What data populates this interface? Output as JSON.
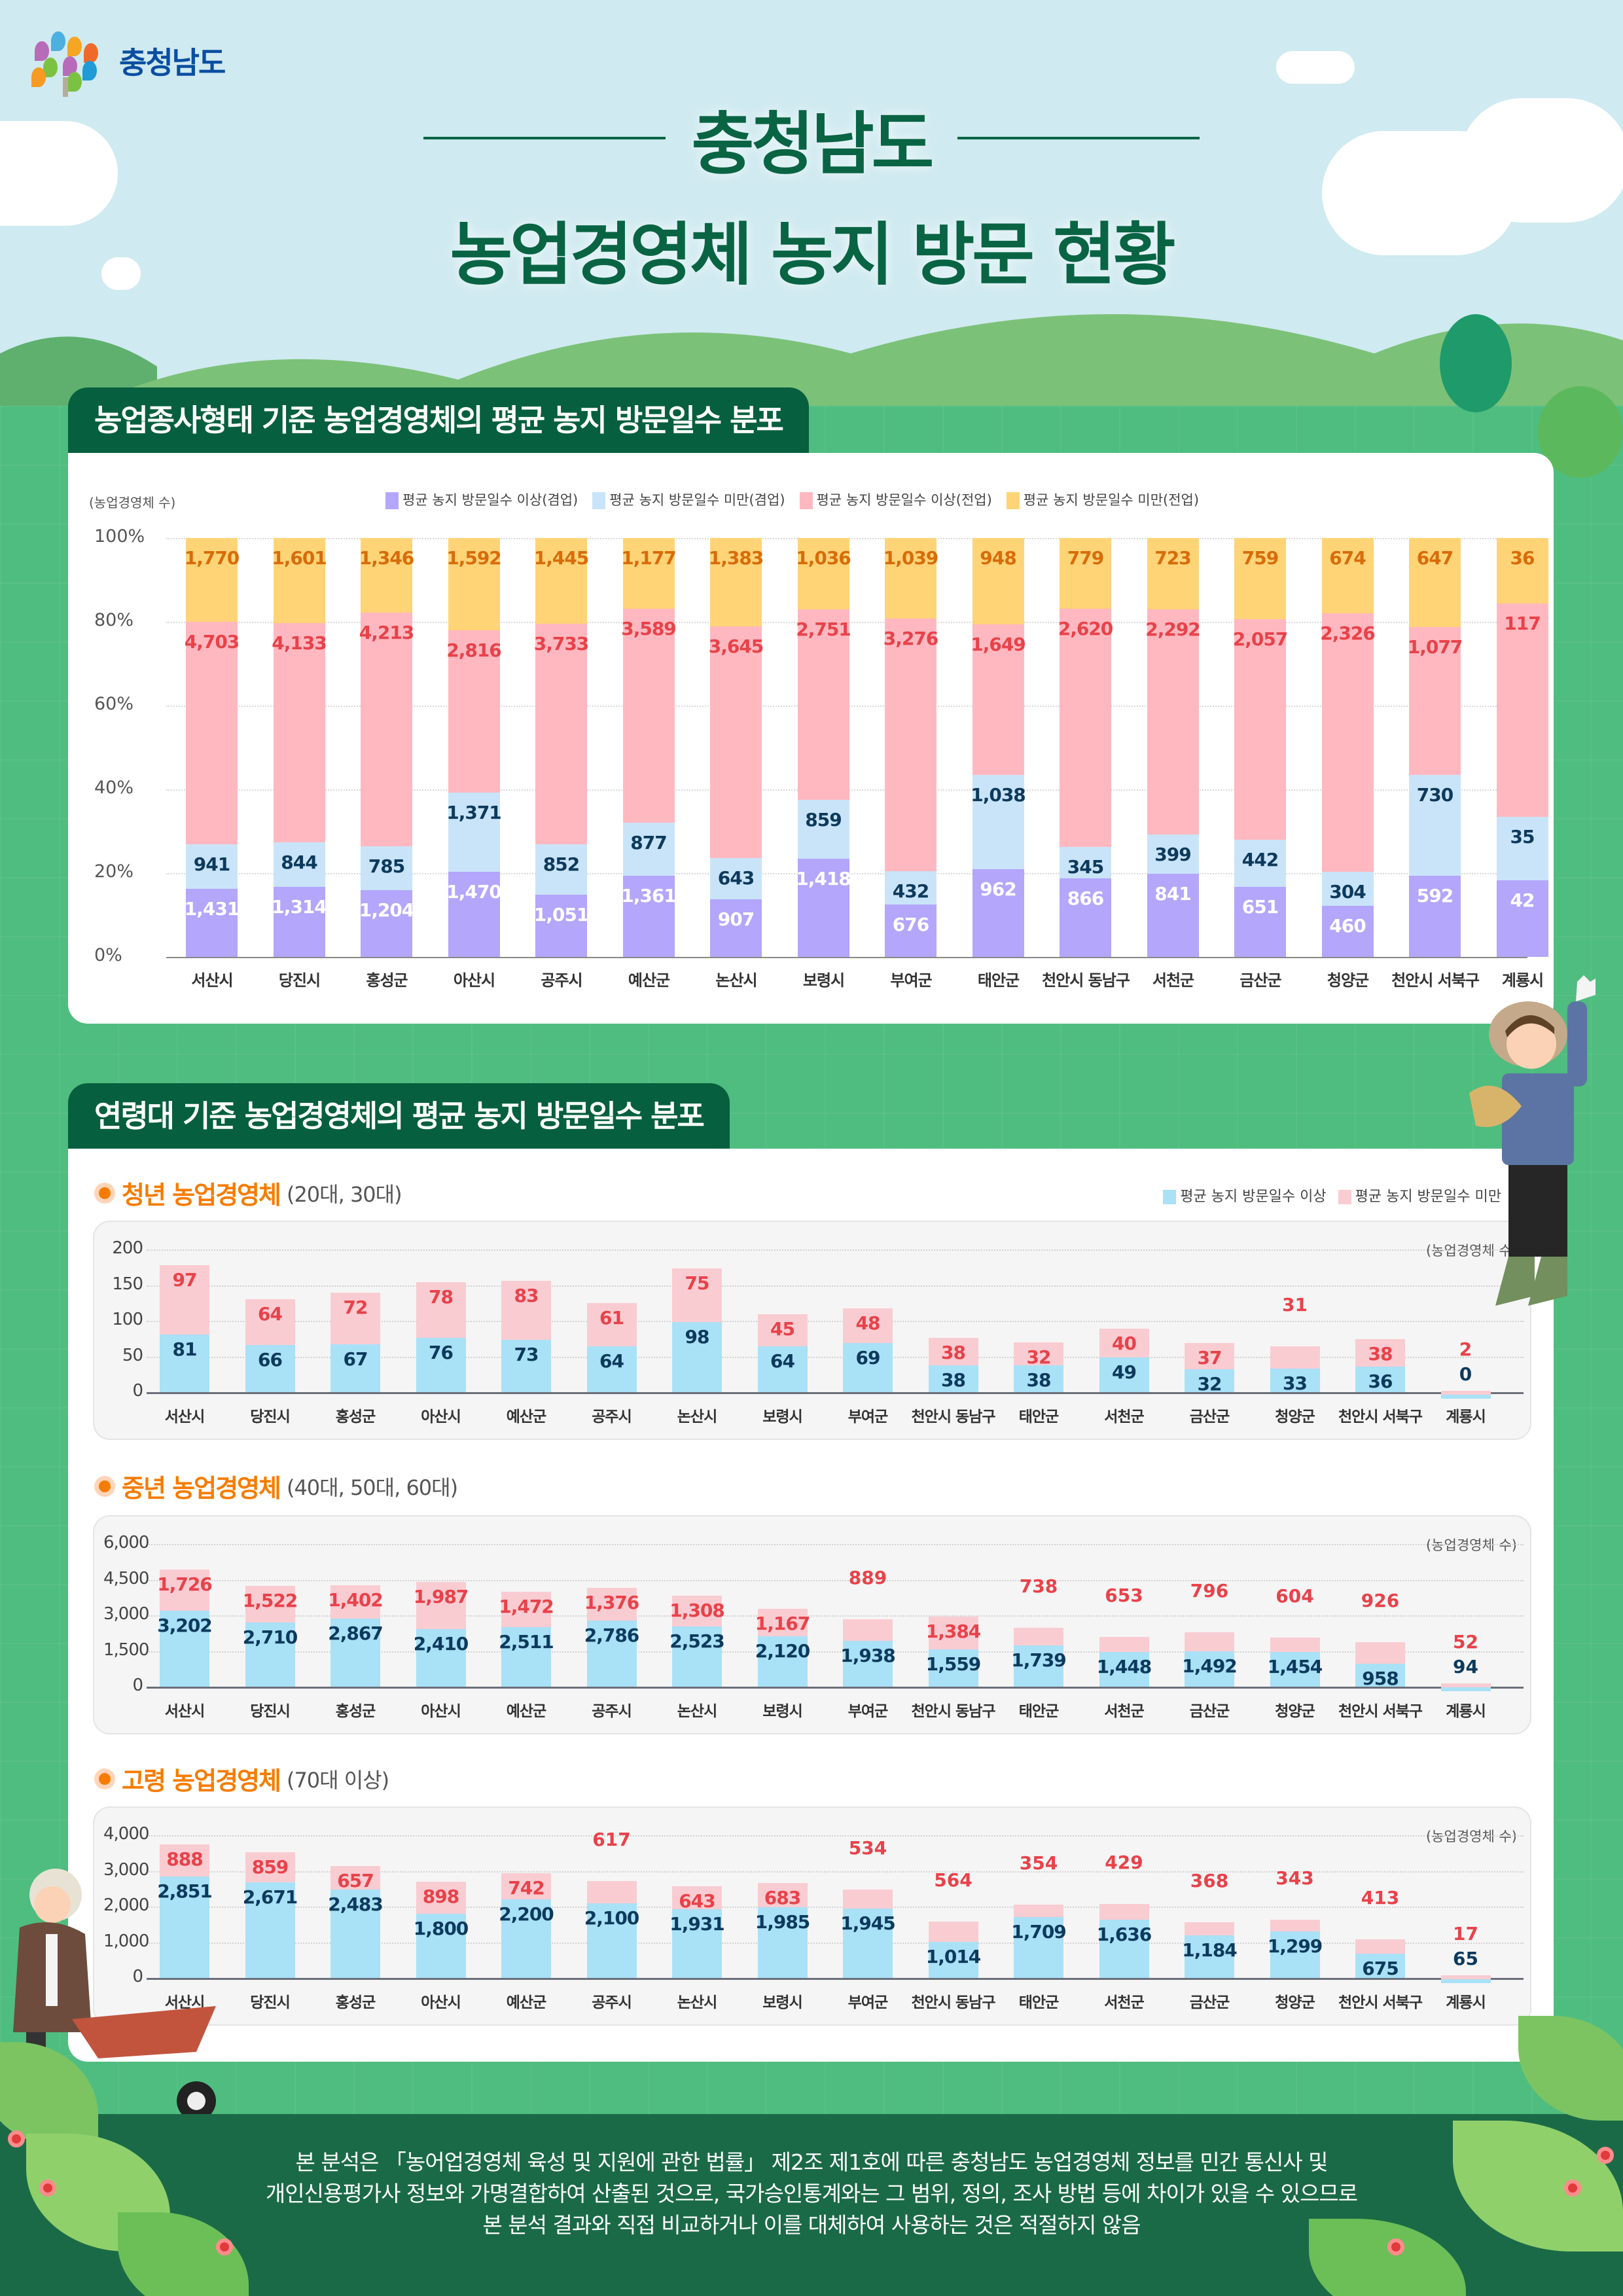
{
  "logo": {
    "text": "충청남도",
    "icon": "chungnam-tree-logo-icon"
  },
  "title": {
    "line1": "충청남도",
    "line2": "농업경영체 농지 방문 현황"
  },
  "section1": {
    "heading": "농업종사형태 기준 농업경영체의 평균 농지 방문일수 분포",
    "ylabel": "(농업경영체 수)",
    "legend": [
      {
        "label": "평균 농지 방문일수 이상(겸업)",
        "color": "#b3a6fb"
      },
      {
        "label": "평균 농지 방문일수 미만(겸업)",
        "color": "#c9e4f8"
      },
      {
        "label": "평균 농지 방문일수 이상(전업)",
        "color": "#ffb8c0"
      },
      {
        "label": "평균 농지 방문일수 미만(전업)",
        "color": "#ffd477"
      }
    ],
    "yticks": [
      "0%",
      "20%",
      "40%",
      "60%",
      "80%",
      "100%"
    ]
  },
  "section2": {
    "heading": "연령대 기준 농업경영체의 평균 농지 방문일수 분포",
    "legend": [
      {
        "label": "평균 농지 방문일수 이상",
        "color": "#a9e1f7"
      },
      {
        "label": "평균 농지 방문일수 미만",
        "color": "#f9ccd2"
      }
    ],
    "unit": "(농업경영체 수)",
    "young": {
      "title": "청년 농업경영체",
      "note": "(20대, 30대)",
      "yticks": [
        "0",
        "50",
        "100",
        "150",
        "200"
      ]
    },
    "middle": {
      "title": "중년 농업경영체",
      "note": "(40대, 50대, 60대)",
      "yticks": [
        "0",
        "1,500",
        "3,000",
        "4,500",
        "6,000"
      ]
    },
    "senior": {
      "title": "고령 농업경영체",
      "note": "(70대 이상)",
      "yticks": [
        "0",
        "1,000",
        "2,000",
        "3,000",
        "4,000"
      ]
    }
  },
  "footer": {
    "lines": [
      "본 분석은 「농어업경영체 육성 및 지원에 관한 법률」 제2조 제1호에 따른 충청남도 농업경영체 정보를 민간 통신사 및",
      "개인신용평가사 정보와 가명결합하여 산출된 것으로, 국가승인통계와는 그 범위, 정의, 조사 방법 등에 차이가 있을 수 있으므로",
      "본 분석 결과와 직접 비교하거나 이를 대체하여 사용하는 것은 적절하지 않음"
    ]
  },
  "chart_data": [
    {
      "type": "bar",
      "stacked": "percent",
      "title": "농업종사형태 기준 농업경영체의 평균 농지 방문일수 분포",
      "xlabel": "",
      "ylabel": "(농업경영체 수)",
      "ylim": [
        0,
        100
      ],
      "grid": true,
      "legend_position": "top",
      "categories": [
        "서산시",
        "당진시",
        "홍성군",
        "아산시",
        "공주시",
        "예산군",
        "논산시",
        "보령시",
        "부여군",
        "태안군",
        "천안시 동남구",
        "서천군",
        "금산군",
        "청양군",
        "천안시 서북구",
        "계룡시"
      ],
      "series": [
        {
          "name": "평균 농지 방문일수 이상(겸업)",
          "color": "#b3a6fb",
          "values": [
            1431,
            1314,
            1204,
            1470,
            1051,
            1361,
            907,
            1418,
            676,
            962,
            866,
            841,
            651,
            460,
            592,
            42
          ]
        },
        {
          "name": "평균 농지 방문일수 미만(겸업)",
          "color": "#c9e4f8",
          "values": [
            941,
            844,
            785,
            1371,
            852,
            877,
            643,
            859,
            432,
            1038,
            345,
            399,
            442,
            304,
            730,
            35
          ]
        },
        {
          "name": "평균 농지 방문일수 이상(전업)",
          "color": "#ffb8c0",
          "values": [
            4703,
            4133,
            4213,
            2816,
            3733,
            3589,
            3645,
            2751,
            3276,
            1649,
            2620,
            2292,
            2057,
            2326,
            1077,
            117
          ]
        },
        {
          "name": "평균 농지 방문일수 미만(전업)",
          "color": "#ffd477",
          "values": [
            1770,
            1601,
            1346,
            1592,
            1445,
            1177,
            1383,
            1036,
            1039,
            948,
            779,
            723,
            759,
            674,
            647,
            36
          ]
        }
      ]
    },
    {
      "type": "bar",
      "stacked": true,
      "title": "청년 농업경영체 (20대, 30대)",
      "ylabel": "(농업경영체 수)",
      "ylim": [
        0,
        200
      ],
      "grid": true,
      "categories": [
        "서산시",
        "당진시",
        "홍성군",
        "아산시",
        "예산군",
        "공주시",
        "논산시",
        "보령시",
        "부여군",
        "천안시 동남구",
        "태안군",
        "서천군",
        "금산군",
        "청양군",
        "천안시 서북구",
        "계룡시"
      ],
      "series": [
        {
          "name": "평균 농지 방문일수 이상",
          "color": "#a9e1f7",
          "values": [
            81,
            66,
            67,
            76,
            73,
            64,
            98,
            64,
            69,
            38,
            38,
            49,
            32,
            33,
            36,
            0
          ]
        },
        {
          "name": "평균 농지 방문일수 미만",
          "color": "#f9ccd2",
          "values": [
            97,
            64,
            72,
            78,
            83,
            61,
            75,
            45,
            48,
            38,
            32,
            40,
            37,
            31,
            38,
            2
          ]
        }
      ]
    },
    {
      "type": "bar",
      "stacked": true,
      "title": "중년 농업경영체 (40대, 50대, 60대)",
      "ylabel": "(농업경영체 수)",
      "ylim": [
        0,
        6000
      ],
      "grid": true,
      "categories": [
        "서산시",
        "당진시",
        "홍성군",
        "아산시",
        "예산군",
        "공주시",
        "논산시",
        "보령시",
        "부여군",
        "천안시 동남구",
        "태안군",
        "서천군",
        "금산군",
        "청양군",
        "천안시 서북구",
        "계룡시"
      ],
      "series": [
        {
          "name": "평균 농지 방문일수 이상",
          "color": "#a9e1f7",
          "values": [
            3202,
            2710,
            2867,
            2410,
            2511,
            2786,
            2523,
            2120,
            1938,
            1559,
            1739,
            1448,
            1492,
            1454,
            958,
            94
          ]
        },
        {
          "name": "평균 농지 방문일수 미만",
          "color": "#f9ccd2",
          "values": [
            1726,
            1522,
            1402,
            1987,
            1472,
            1376,
            1308,
            1167,
            889,
            1384,
            738,
            653,
            796,
            604,
            926,
            52
          ]
        }
      ]
    },
    {
      "type": "bar",
      "stacked": true,
      "title": "고령 농업경영체 (70대 이상)",
      "ylabel": "(농업경영체 수)",
      "ylim": [
        0,
        4000
      ],
      "grid": true,
      "categories": [
        "서산시",
        "당진시",
        "홍성군",
        "아산시",
        "예산군",
        "공주시",
        "논산시",
        "보령시",
        "부여군",
        "천안시 동남구",
        "태안군",
        "서천군",
        "금산군",
        "청양군",
        "천안시 서북구",
        "계룡시"
      ],
      "series": [
        {
          "name": "평균 농지 방문일수 이상",
          "color": "#a9e1f7",
          "values": [
            2851,
            2671,
            2483,
            1800,
            2200,
            2100,
            1931,
            1985,
            1945,
            1014,
            1709,
            1636,
            1184,
            1299,
            675,
            65
          ]
        },
        {
          "name": "평균 농지 방문일수 미만",
          "color": "#f9ccd2",
          "values": [
            888,
            859,
            657,
            898,
            742,
            617,
            643,
            683,
            534,
            564,
            354,
            429,
            368,
            343,
            413,
            17
          ]
        }
      ]
    }
  ],
  "colors": {
    "brand_green": "#096444",
    "section_tab": "#065f3e",
    "accent_orange": "#f57c00",
    "label_red": "#e8424a",
    "label_navy": "#0d3a5c",
    "label_orange": "#d86c0a"
  }
}
